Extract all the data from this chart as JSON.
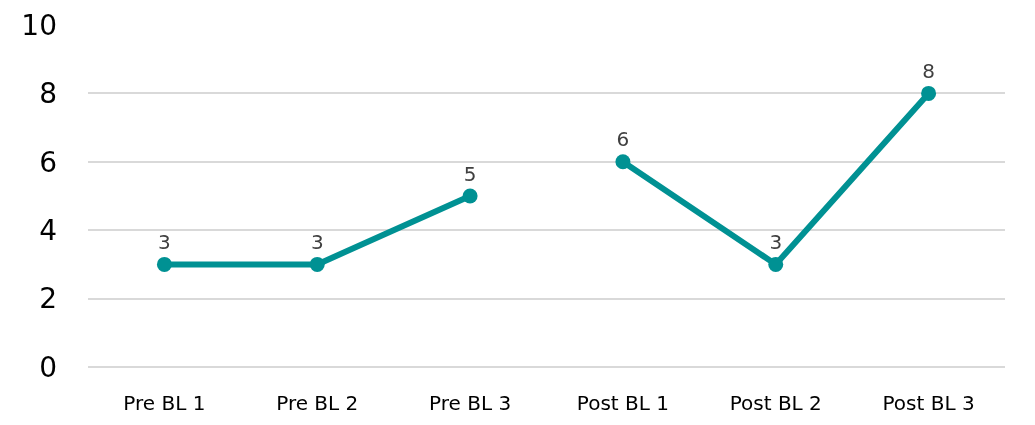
{
  "chart_data": {
    "type": "line",
    "categories": [
      "Pre BL 1",
      "Pre BL 2",
      "Pre BL 3",
      "Post BL 1",
      "Post BL 2",
      "Post BL 3"
    ],
    "series": [
      {
        "color": "#009193",
        "values": [
          3,
          3,
          5,
          null,
          null,
          null
        ]
      },
      {
        "color": "#009193",
        "values": [
          null,
          null,
          null,
          6,
          3,
          8
        ]
      }
    ],
    "ylim": [
      0,
      10
    ],
    "yticks": [
      0,
      2,
      4,
      6,
      8,
      10
    ],
    "grid": "y",
    "marker": "circle",
    "line_style": "solid",
    "data_labels": true
  }
}
